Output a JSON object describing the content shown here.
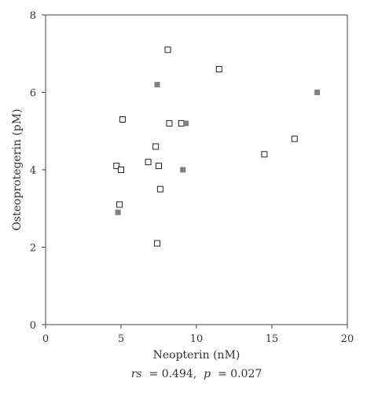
{
  "chart_data": {
    "type": "scatter",
    "xlabel": "Neopterin (nM)",
    "ylabel": "Osteoprotegerin (pM)",
    "xlim": [
      0,
      20
    ],
    "ylim": [
      0,
      8
    ],
    "x_ticks": [
      0,
      5,
      10,
      15,
      20
    ],
    "y_ticks": [
      0,
      2,
      4,
      6,
      8
    ],
    "grid": false,
    "annotation": {
      "rs_symbol": "rs",
      "rs_text": " = 0.494, ",
      "p_symbol": "p",
      "p_text": " = 0.027"
    },
    "series": [
      {
        "marker": "open-square",
        "color": "#222222",
        "x": [
          4.7,
          4.9,
          5.0,
          5.1,
          6.8,
          7.3,
          7.4,
          7.5,
          7.6,
          8.1,
          8.2,
          9.0,
          11.5,
          14.5,
          16.5
        ],
        "y": [
          4.1,
          3.1,
          4.0,
          5.3,
          4.2,
          4.6,
          2.1,
          4.1,
          3.5,
          7.1,
          5.2,
          5.2,
          6.6,
          4.4,
          4.8
        ]
      },
      {
        "marker": "filled-square",
        "color": "#808080",
        "x": [
          4.8,
          7.4,
          9.1,
          9.3,
          18.0
        ],
        "y": [
          2.9,
          6.2,
          4.0,
          5.2,
          6.0
        ]
      }
    ]
  }
}
